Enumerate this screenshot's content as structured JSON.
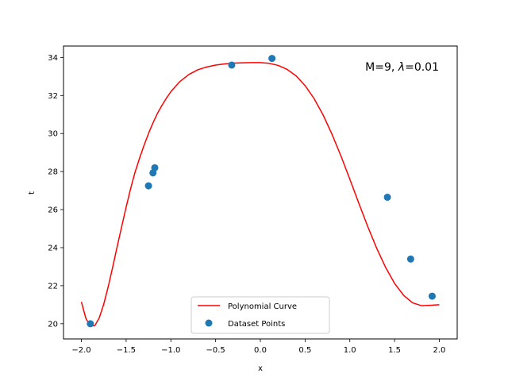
{
  "chart_data": {
    "type": "line",
    "xlabel": "x",
    "ylabel": "t",
    "xlim": [
      -2.2,
      2.2
    ],
    "ylim": [
      19.2,
      34.6
    ],
    "xticks": [
      -2.0,
      -1.5,
      -1.0,
      -0.5,
      0.0,
      0.5,
      1.0,
      1.5,
      2.0
    ],
    "xtick_labels": [
      "−2.0",
      "−1.5",
      "−1.0",
      "−0.5",
      "0.0",
      "0.5",
      "1.0",
      "1.5",
      "2.0"
    ],
    "yticks": [
      20,
      22,
      24,
      26,
      28,
      30,
      32,
      34
    ],
    "ytick_labels": [
      "20",
      "22",
      "24",
      "26",
      "28",
      "30",
      "32",
      "34"
    ],
    "grid": false,
    "annotation": {
      "prefix": "M=9, ",
      "lambda_symbol": "λ",
      "suffix": "=0.01"
    },
    "legend": {
      "placement": "lower center",
      "entries": [
        "Polynomial Curve",
        "Dataset Points"
      ]
    },
    "series": [
      {
        "name": "Polynomial Curve",
        "kind": "line",
        "color": "#ff0000",
        "x": [
          -2.0,
          -1.95,
          -1.9,
          -1.85,
          -1.8,
          -1.75,
          -1.7,
          -1.65,
          -1.6,
          -1.55,
          -1.5,
          -1.45,
          -1.4,
          -1.35,
          -1.3,
          -1.25,
          -1.2,
          -1.15,
          -1.1,
          -1.05,
          -1.0,
          -0.9,
          -0.8,
          -0.7,
          -0.6,
          -0.5,
          -0.4,
          -0.3,
          -0.2,
          -0.1,
          0.0,
          0.1,
          0.2,
          0.3,
          0.4,
          0.5,
          0.6,
          0.7,
          0.8,
          0.9,
          1.0,
          1.1,
          1.2,
          1.3,
          1.4,
          1.5,
          1.6,
          1.7,
          1.8,
          1.9,
          2.0
        ],
        "y": [
          21.15,
          20.28,
          19.88,
          19.9,
          20.31,
          21.03,
          21.95,
          22.98,
          24.06,
          25.1,
          26.13,
          27.1,
          27.97,
          28.7,
          29.38,
          30.0,
          30.56,
          31.06,
          31.48,
          31.86,
          32.2,
          32.73,
          33.1,
          33.35,
          33.5,
          33.6,
          33.66,
          33.7,
          33.72,
          33.73,
          33.73,
          33.69,
          33.58,
          33.37,
          33.03,
          32.52,
          31.84,
          30.99,
          29.97,
          28.83,
          27.6,
          26.34,
          25.11,
          23.97,
          22.96,
          22.12,
          21.5,
          21.1,
          20.95,
          20.97,
          21.0
        ]
      },
      {
        "name": "Dataset Points",
        "kind": "scatter",
        "color": "#1f77b4",
        "x": [
          -1.9,
          -1.25,
          -1.2,
          -1.18,
          -0.32,
          0.13,
          1.42,
          1.68,
          1.92
        ],
        "y": [
          20.0,
          27.25,
          27.93,
          28.2,
          33.6,
          33.95,
          26.65,
          23.4,
          21.45
        ]
      }
    ]
  }
}
